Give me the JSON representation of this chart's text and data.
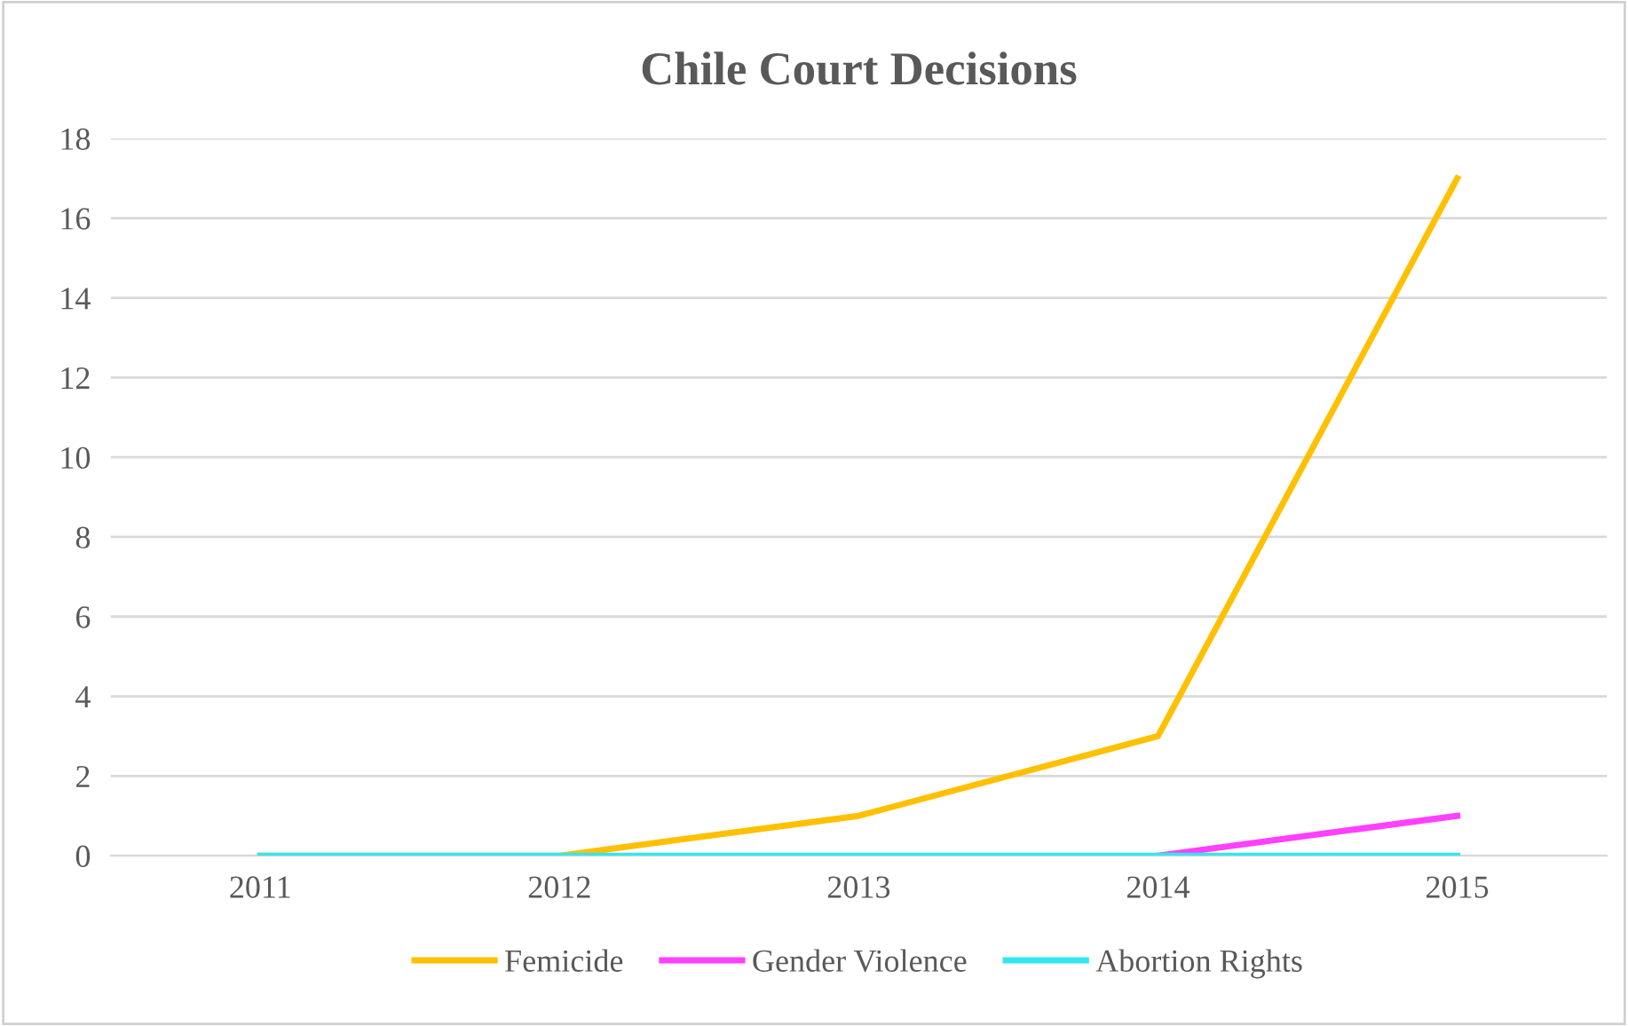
{
  "chart_data": {
    "type": "line",
    "title": "Chile Court Decisions",
    "categories": [
      "2011",
      "2012",
      "2013",
      "2014",
      "2015"
    ],
    "series": [
      {
        "name": "Femicide",
        "color": "#ffc000",
        "values": [
          0,
          0,
          1,
          3,
          17
        ]
      },
      {
        "name": "Gender Violence",
        "color": "#ff40ff",
        "values": [
          null,
          null,
          null,
          0,
          1
        ]
      },
      {
        "name": "Abortion Rights",
        "color": "#33e6f0",
        "values": [
          0,
          0,
          0,
          0,
          0
        ]
      }
    ],
    "ylim": [
      0,
      18
    ],
    "yticks": [
      0,
      2,
      4,
      6,
      8,
      10,
      12,
      14,
      16,
      18
    ],
    "grid": "y",
    "legend": "bottom",
    "marker": "none",
    "line_style": "solid"
  }
}
